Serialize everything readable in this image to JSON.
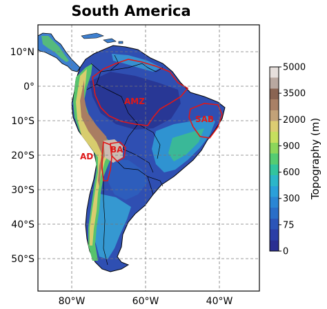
{
  "title": "South America",
  "map": {
    "lon_ticks": [
      "80°W",
      "60°W",
      "40°W"
    ],
    "lat_ticks": [
      "10°N",
      "0°",
      "10°S",
      "20°S",
      "30°S",
      "40°S",
      "50°S"
    ],
    "regions": [
      {
        "code": "AMZ"
      },
      {
        "code": "SAB"
      },
      {
        "code": "AD"
      },
      {
        "code": "BA"
      }
    ]
  },
  "colorbar": {
    "label": "Topography (m)",
    "ticks": [
      "5000",
      "3500",
      "2000",
      "900",
      "600",
      "300",
      "75",
      "0"
    ],
    "colors": [
      "#2a2e92",
      "#2b3ea6",
      "#2c55b8",
      "#2a6ec8",
      "#2a86d4",
      "#2aa0da",
      "#2cb6c9",
      "#32c49e",
      "#55cc72",
      "#8cd65a",
      "#c6df5e",
      "#dccd72",
      "#c2a278",
      "#a98066",
      "#8a6452",
      "#b9a8a0",
      "#e6dfdc"
    ]
  }
}
